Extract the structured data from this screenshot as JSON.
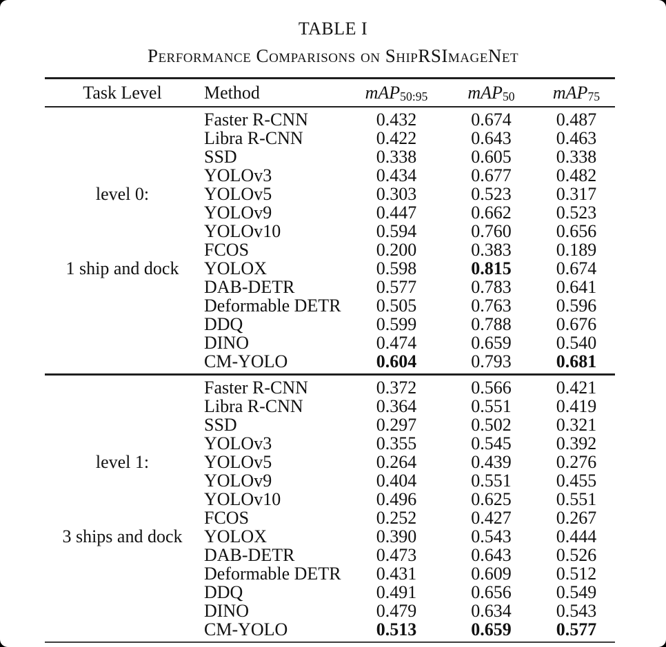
{
  "title": "TABLE I",
  "subtitle": "Performance Comparisons on ShipRSImageNet",
  "table": {
    "headers": {
      "task_level": "Task Level",
      "method": "Method",
      "metrics": [
        {
          "base": "mAP",
          "sub": "50:95"
        },
        {
          "base": "mAP",
          "sub": "50"
        },
        {
          "base": "mAP",
          "sub": "75"
        }
      ]
    },
    "sections": [
      {
        "level_label": "level 0:",
        "task_label": "1 ship and dock",
        "rows": [
          {
            "task": "",
            "method": "Faster R-CNN",
            "values": [
              "0.432",
              "0.674",
              "0.487"
            ],
            "bold": [
              false,
              false,
              false
            ]
          },
          {
            "task": "",
            "method": "Libra R-CNN",
            "values": [
              "0.422",
              "0.643",
              "0.463"
            ],
            "bold": [
              false,
              false,
              false
            ]
          },
          {
            "task": "",
            "method": "SSD",
            "values": [
              "0.338",
              "0.605",
              "0.338"
            ],
            "bold": [
              false,
              false,
              false
            ]
          },
          {
            "task": "",
            "method": "YOLOv3",
            "values": [
              "0.434",
              "0.677",
              "0.482"
            ],
            "bold": [
              false,
              false,
              false
            ]
          },
          {
            "task": "level 0:",
            "method": "YOLOv5",
            "values": [
              "0.303",
              "0.523",
              "0.317"
            ],
            "bold": [
              false,
              false,
              false
            ]
          },
          {
            "task": "",
            "method": "YOLOv9",
            "values": [
              "0.447",
              "0.662",
              "0.523"
            ],
            "bold": [
              false,
              false,
              false
            ]
          },
          {
            "task": "",
            "method": "YOLOv10",
            "values": [
              "0.594",
              "0.760",
              "0.656"
            ],
            "bold": [
              false,
              false,
              false
            ]
          },
          {
            "task": "",
            "method": "FCOS",
            "values": [
              "0.200",
              "0.383",
              "0.189"
            ],
            "bold": [
              false,
              false,
              false
            ]
          },
          {
            "task": "1 ship and dock",
            "method": "YOLOX",
            "values": [
              "0.598",
              "0.815",
              "0.674"
            ],
            "bold": [
              false,
              true,
              false
            ]
          },
          {
            "task": "",
            "method": "DAB-DETR",
            "values": [
              "0.577",
              "0.783",
              "0.641"
            ],
            "bold": [
              false,
              false,
              false
            ]
          },
          {
            "task": "",
            "method": "Deformable DETR",
            "values": [
              "0.505",
              "0.763",
              "0.596"
            ],
            "bold": [
              false,
              false,
              false
            ]
          },
          {
            "task": "",
            "method": "DDQ",
            "values": [
              "0.599",
              "0.788",
              "0.676"
            ],
            "bold": [
              false,
              false,
              false
            ]
          },
          {
            "task": "",
            "method": "DINO",
            "values": [
              "0.474",
              "0.659",
              "0.540"
            ],
            "bold": [
              false,
              false,
              false
            ]
          },
          {
            "task": "",
            "method": "CM-YOLO",
            "values": [
              "0.604",
              "0.793",
              "0.681"
            ],
            "bold": [
              true,
              false,
              true
            ]
          }
        ]
      },
      {
        "level_label": "level 1:",
        "task_label": "3 ships and dock",
        "rows": [
          {
            "task": "",
            "method": "Faster R-CNN",
            "values": [
              "0.372",
              "0.566",
              "0.421"
            ],
            "bold": [
              false,
              false,
              false
            ]
          },
          {
            "task": "",
            "method": "Libra R-CNN",
            "values": [
              "0.364",
              "0.551",
              "0.419"
            ],
            "bold": [
              false,
              false,
              false
            ]
          },
          {
            "task": "",
            "method": "SSD",
            "values": [
              "0.297",
              "0.502",
              "0.321"
            ],
            "bold": [
              false,
              false,
              false
            ]
          },
          {
            "task": "",
            "method": "YOLOv3",
            "values": [
              "0.355",
              "0.545",
              "0.392"
            ],
            "bold": [
              false,
              false,
              false
            ]
          },
          {
            "task": "level 1:",
            "method": "YOLOv5",
            "values": [
              "0.264",
              "0.439",
              "0.276"
            ],
            "bold": [
              false,
              false,
              false
            ]
          },
          {
            "task": "",
            "method": "YOLOv9",
            "values": [
              "0.404",
              "0.551",
              "0.455"
            ],
            "bold": [
              false,
              false,
              false
            ]
          },
          {
            "task": "",
            "method": "YOLOv10",
            "values": [
              "0.496",
              "0.625",
              "0.551"
            ],
            "bold": [
              false,
              false,
              false
            ]
          },
          {
            "task": "",
            "method": "FCOS",
            "values": [
              "0.252",
              "0.427",
              "0.267"
            ],
            "bold": [
              false,
              false,
              false
            ]
          },
          {
            "task": "3 ships and dock",
            "method": "YOLOX",
            "values": [
              "0.390",
              "0.543",
              "0.444"
            ],
            "bold": [
              false,
              false,
              false
            ]
          },
          {
            "task": "",
            "method": "DAB-DETR",
            "values": [
              "0.473",
              "0.643",
              "0.526"
            ],
            "bold": [
              false,
              false,
              false
            ]
          },
          {
            "task": "",
            "method": "Deformable DETR",
            "values": [
              "0.431",
              "0.609",
              "0.512"
            ],
            "bold": [
              false,
              false,
              false
            ]
          },
          {
            "task": "",
            "method": "DDQ",
            "values": [
              "0.491",
              "0.656",
              "0.549"
            ],
            "bold": [
              false,
              false,
              false
            ]
          },
          {
            "task": "",
            "method": "DINO",
            "values": [
              "0.479",
              "0.634",
              "0.543"
            ],
            "bold": [
              false,
              false,
              false
            ]
          },
          {
            "task": "",
            "method": "CM-YOLO",
            "values": [
              "0.513",
              "0.659",
              "0.577"
            ],
            "bold": [
              true,
              true,
              true
            ]
          }
        ]
      }
    ]
  }
}
